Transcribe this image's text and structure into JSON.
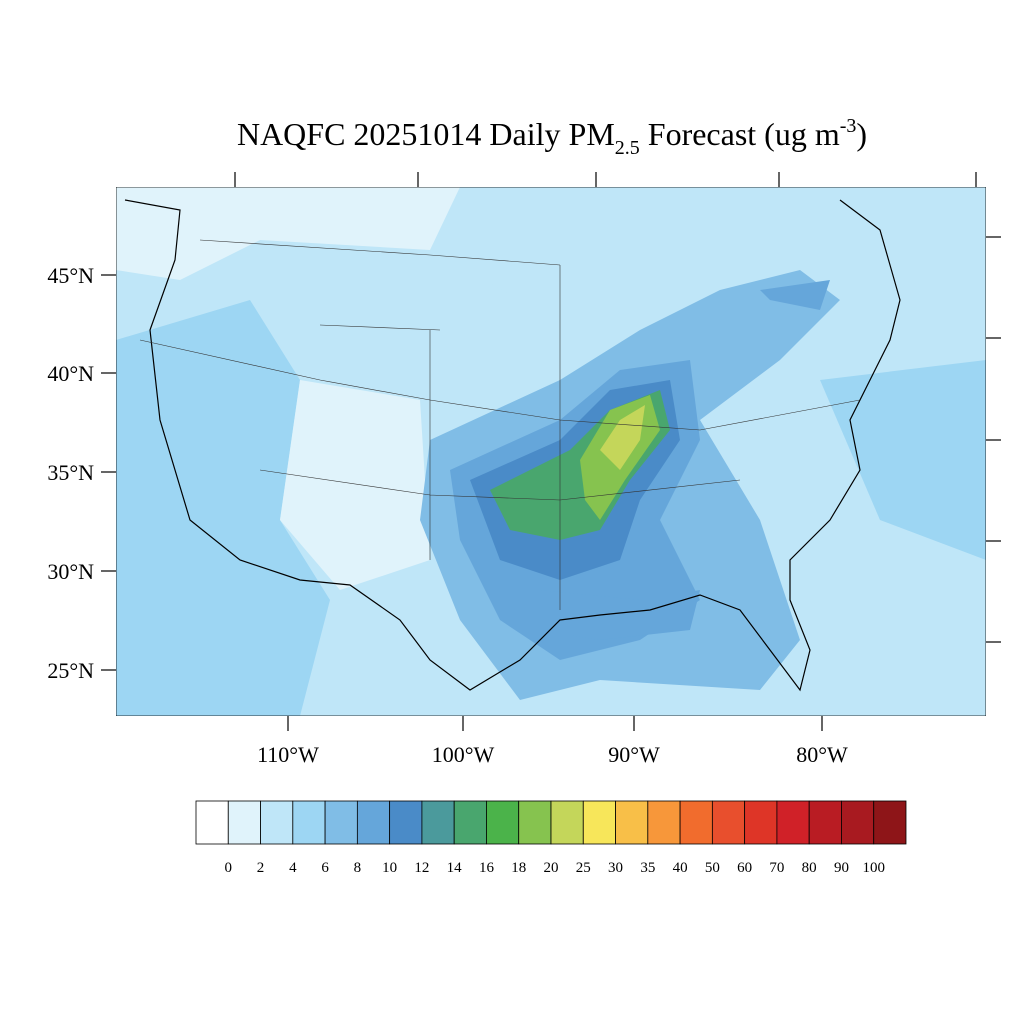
{
  "title": {
    "main": "NAQFC 20251014 Daily PM",
    "sub": "2.5",
    "rest": "Forecast (ug m",
    "sup": "-3",
    "end": ")"
  },
  "lat_labels": [
    "45°N",
    "40°N",
    "35°N",
    "30°N",
    "25°N"
  ],
  "lon_labels": [
    "110°W",
    "100°W",
    "90°W",
    "80°W"
  ],
  "colorbar": {
    "levels": [
      0,
      2,
      4,
      6,
      8,
      10,
      12,
      14,
      16,
      18,
      20,
      25,
      30,
      35,
      40,
      50,
      60,
      70,
      80,
      90,
      100
    ],
    "colors": [
      "#ffffff",
      "#e0f3fb",
      "#bfe6f8",
      "#9dd6f3",
      "#80bde6",
      "#65a6da",
      "#4a8bc8",
      "#4b9a9c",
      "#49a66e",
      "#4bb34a",
      "#86c34f",
      "#c4d65a",
      "#f7e65a",
      "#f8bf48",
      "#f7973a",
      "#f16c2d",
      "#e84f2d",
      "#de3527",
      "#d02128",
      "#b91c23",
      "#a81a20",
      "#8e1518"
    ]
  }
}
